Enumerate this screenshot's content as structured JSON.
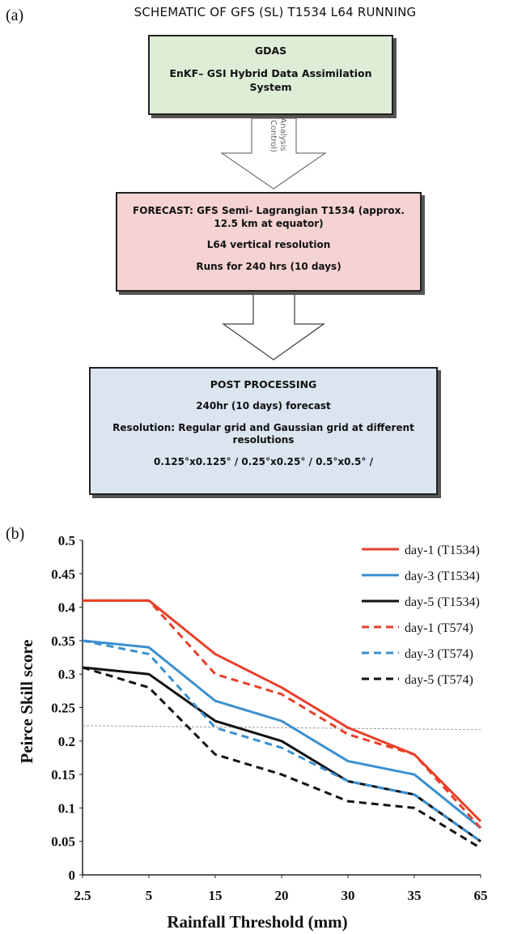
{
  "schematic": {
    "panel_label": "(a)",
    "title": "SCHEMATIC OF GFS (SL) T1534 L64 RUNNING",
    "gdas": {
      "heading": "GDAS",
      "line1": "EnKF– GSI Hybrid Data Assimilation",
      "line2": "System"
    },
    "arrow1_label_top": "Analysis",
    "arrow1_label_bottom": "(Control)",
    "forecast": {
      "line1": "FORECAST: GFS Semi- Lagrangian  T1534 (approx.",
      "line2": "12.5 km at equator)",
      "line3": "L64 vertical resolution",
      "line4": "Runs for 240 hrs (10 days)"
    },
    "post": {
      "heading": "POST PROCESSING",
      "line1": "240hr (10 days) forecast",
      "line2": "Resolution: Regular grid and Gaussian grid at different",
      "line3": "resolutions",
      "res_a": "0.125°x0.125°",
      "res_b": "0.25°x0.25°",
      "res_c": "0.5°x0.5°"
    },
    "colors": {
      "gdas_fill": "#deedd6",
      "forecast_fill": "#f6d3d3",
      "post_fill": "#dbe5f0"
    }
  },
  "chart_data": {
    "panel_label": "(b)",
    "type": "line",
    "categories": [
      "2.5",
      "5",
      "15",
      "20",
      "30",
      "35",
      "65"
    ],
    "ylabel": "Peirce Skill score",
    "xlabel": "Rainfall Threshold (mm)",
    "ylim": [
      0,
      0.5
    ],
    "yticks": [
      0,
      0.05,
      0.1,
      0.15,
      0.2,
      0.25,
      0.3,
      0.35,
      0.4,
      0.45,
      0.5
    ],
    "ytick_labels": [
      "0",
      "0.05",
      "0.1",
      "0.15",
      "0.2",
      "0.25",
      "0.3",
      "0.35",
      "0.4",
      "0.45",
      "0.5"
    ],
    "grid": false,
    "legend_position": "top-right",
    "reference_line": {
      "y_start": 0.223,
      "y_end": 0.217,
      "color": "#999999",
      "dashed": true
    },
    "series": [
      {
        "name": "day-1 (T1534)",
        "color": "#e8402a",
        "dashed": false,
        "values": [
          0.41,
          0.41,
          0.33,
          0.28,
          0.22,
          0.18,
          0.08
        ]
      },
      {
        "name": "day-3 (T1534)",
        "color": "#3a8fd0",
        "dashed": false,
        "values": [
          0.35,
          0.34,
          0.26,
          0.23,
          0.17,
          0.15,
          0.07
        ]
      },
      {
        "name": "day-5 (T1534)",
        "color": "#111111",
        "dashed": false,
        "values": [
          0.31,
          0.3,
          0.23,
          0.2,
          0.14,
          0.12,
          0.05
        ]
      },
      {
        "name": "day-1 (T574)",
        "color": "#e8402a",
        "dashed": true,
        "values": [
          0.41,
          0.41,
          0.3,
          0.27,
          0.21,
          0.18,
          0.07
        ]
      },
      {
        "name": "day-3 (T574)",
        "color": "#3a8fd0",
        "dashed": true,
        "values": [
          0.35,
          0.33,
          0.22,
          0.19,
          0.14,
          0.12,
          0.05
        ]
      },
      {
        "name": "day-5 (T574)",
        "color": "#111111",
        "dashed": true,
        "values": [
          0.31,
          0.28,
          0.18,
          0.15,
          0.11,
          0.1,
          0.04
        ]
      }
    ]
  }
}
